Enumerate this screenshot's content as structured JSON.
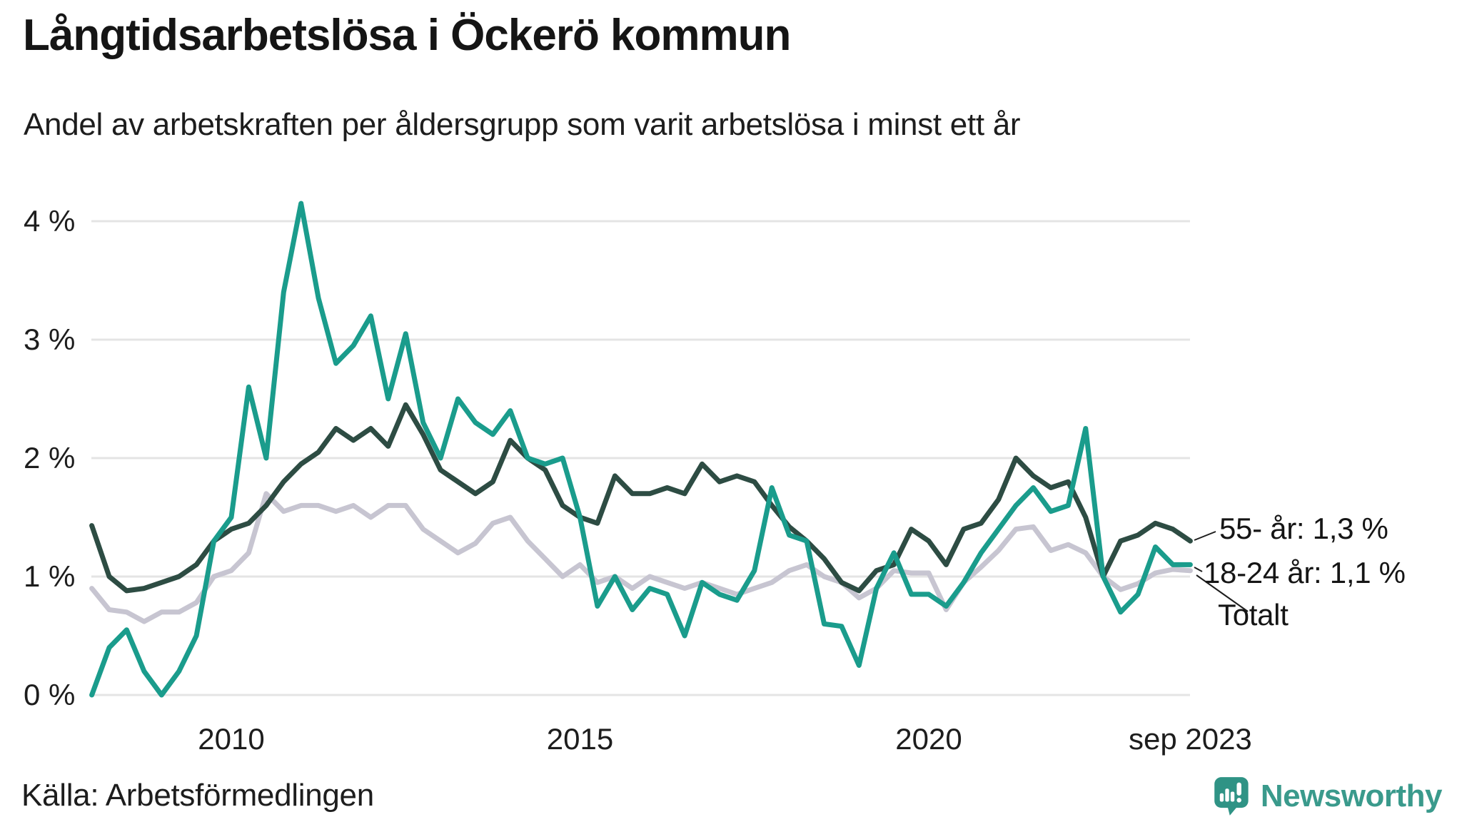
{
  "header": {
    "title": "Långtidsarbetslösa i Öckerö kommun",
    "subtitle": "Andel av arbetskraften per åldersgrupp som varit arbetslösa i minst ett år"
  },
  "footer": {
    "source": "Källa: Arbetsförmedlingen",
    "logo_text": "Newsworthy"
  },
  "colors": {
    "series_18_24": "#1a9c8c",
    "series_55_plus": "#2d4c43",
    "series_total": "#c7c5d1",
    "gridline": "#e4e4e4",
    "text": "#151515",
    "logo_teal": "#2f9385"
  },
  "chart_data": {
    "type": "line",
    "title": "Långtidsarbetslösa i Öckerö kommun",
    "subtitle": "Andel av arbetskraften per åldersgrupp som varit arbetslösa i minst ett år",
    "unit": "%",
    "grid": true,
    "legend_position": "right-annotations",
    "xlim": [
      2008.0,
      2023.75
    ],
    "ylim": [
      0,
      4.3
    ],
    "x_start": 2008.0,
    "x_step_years": 0.25,
    "x_ticks": [
      {
        "label": "2010",
        "year": 2010
      },
      {
        "label": "2015",
        "year": 2015
      },
      {
        "label": "2020",
        "year": 2020
      },
      {
        "label": "sep 2023",
        "year": 2023.75
      }
    ],
    "y_ticks": [
      {
        "label": "0 %",
        "value": 0
      },
      {
        "label": "1 %",
        "value": 1
      },
      {
        "label": "2 %",
        "value": 2
      },
      {
        "label": "3 %",
        "value": 3
      },
      {
        "label": "4 %",
        "value": 4
      }
    ],
    "series": [
      {
        "name": "Totalt",
        "color": "#c7c5d1",
        "values": [
          0.9,
          0.72,
          0.7,
          0.62,
          0.7,
          0.7,
          0.78,
          1.0,
          1.05,
          1.2,
          1.7,
          1.55,
          1.6,
          1.6,
          1.55,
          1.6,
          1.5,
          1.6,
          1.6,
          1.4,
          1.3,
          1.2,
          1.28,
          1.45,
          1.5,
          1.3,
          1.15,
          1.0,
          1.1,
          0.95,
          1.0,
          0.9,
          1.0,
          0.95,
          0.9,
          0.95,
          0.9,
          0.85,
          0.9,
          0.95,
          1.05,
          1.1,
          1.0,
          0.95,
          0.82,
          0.9,
          1.05,
          1.03,
          1.03,
          0.72,
          0.95,
          1.08,
          1.22,
          1.4,
          1.42,
          1.22,
          1.27,
          1.2,
          1.0,
          0.89,
          0.94,
          1.03,
          1.06,
          1.05
        ]
      },
      {
        "name": "55- år",
        "color": "#2d4c43",
        "values": [
          1.43,
          1.0,
          0.88,
          0.9,
          0.95,
          1.0,
          1.1,
          1.3,
          1.4,
          1.45,
          1.6,
          1.8,
          1.95,
          2.05,
          2.25,
          2.15,
          2.25,
          2.1,
          2.45,
          2.2,
          1.9,
          1.8,
          1.7,
          1.8,
          2.15,
          2.0,
          1.9,
          1.6,
          1.5,
          1.45,
          1.85,
          1.7,
          1.7,
          1.75,
          1.7,
          1.95,
          1.8,
          1.85,
          1.8,
          1.6,
          1.42,
          1.3,
          1.15,
          0.95,
          0.88,
          1.05,
          1.1,
          1.4,
          1.3,
          1.1,
          1.4,
          1.45,
          1.65,
          2.0,
          1.85,
          1.75,
          1.8,
          1.5,
          1.0,
          1.3,
          1.35,
          1.45,
          1.4,
          1.3
        ]
      },
      {
        "name": "18-24 år",
        "color": "#1a9c8c",
        "values": [
          0.0,
          0.4,
          0.55,
          0.2,
          0.0,
          0.2,
          0.5,
          1.3,
          1.5,
          2.6,
          2.0,
          3.4,
          4.15,
          3.35,
          2.8,
          2.95,
          3.2,
          2.5,
          3.05,
          2.3,
          2.0,
          2.5,
          2.3,
          2.2,
          2.4,
          2.0,
          1.95,
          2.0,
          1.5,
          0.75,
          1.0,
          0.72,
          0.9,
          0.85,
          0.5,
          0.95,
          0.85,
          0.8,
          1.05,
          1.75,
          1.35,
          1.3,
          0.6,
          0.58,
          0.25,
          0.9,
          1.2,
          0.85,
          0.85,
          0.75,
          0.95,
          1.2,
          1.4,
          1.6,
          1.75,
          1.55,
          1.6,
          2.25,
          1.0,
          0.7,
          0.85,
          1.25,
          1.1,
          1.1
        ]
      }
    ],
    "annotations": [
      {
        "text": "55- år: 1,3 %",
        "series": "55- år",
        "value_pct": 1.3
      },
      {
        "text": "18-24 år: 1,1 %",
        "series": "18-24 år",
        "value_pct": 1.1
      },
      {
        "text": "Totalt",
        "series": "Totalt",
        "value_pct": 1.05
      }
    ]
  }
}
